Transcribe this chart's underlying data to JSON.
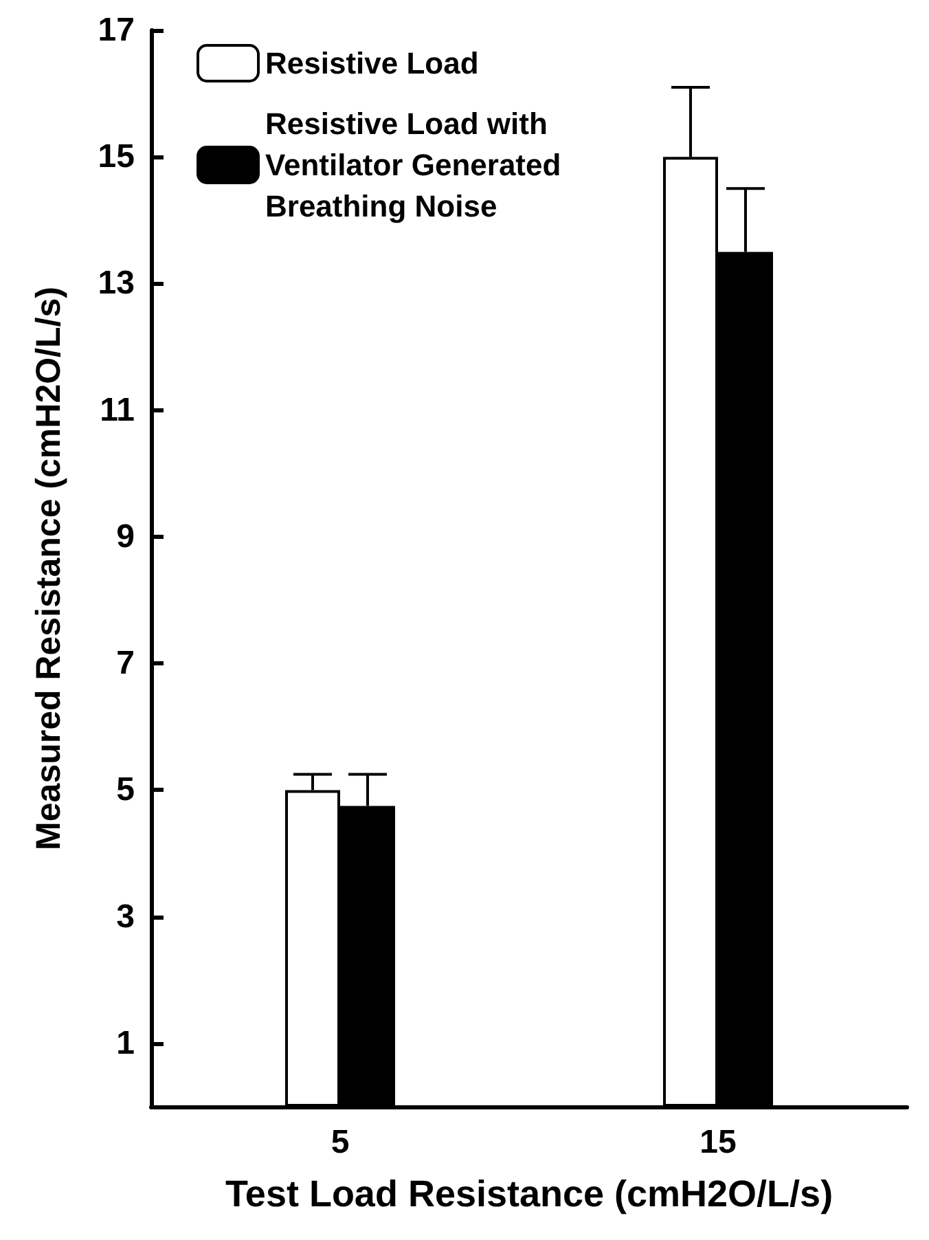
{
  "chart_data": {
    "type": "bar",
    "xlabel": "Test Load Resistance (cmH2O/L/s)",
    "ylabel": "Measured Resistance (cmH2O/L/s)",
    "categories": [
      "5",
      "15"
    ],
    "series": [
      {
        "name": "Resistive Load",
        "color": "#ffffff",
        "values": [
          5.0,
          15.0
        ],
        "errors": [
          [
            5.0,
            5.25
          ],
          [
            15.0,
            16.1
          ]
        ]
      },
      {
        "name": "Resistive Load with Ventilator Generated Breathing Noise",
        "color": "#000000",
        "values": [
          4.75,
          13.5
        ],
        "errors": [
          [
            4.75,
            5.25
          ],
          [
            13.5,
            14.5
          ]
        ]
      }
    ],
    "ylim": [
      0,
      17
    ],
    "yticks": [
      1,
      3,
      5,
      7,
      9,
      11,
      13,
      15,
      17
    ],
    "grid": false,
    "legend": "top left"
  }
}
